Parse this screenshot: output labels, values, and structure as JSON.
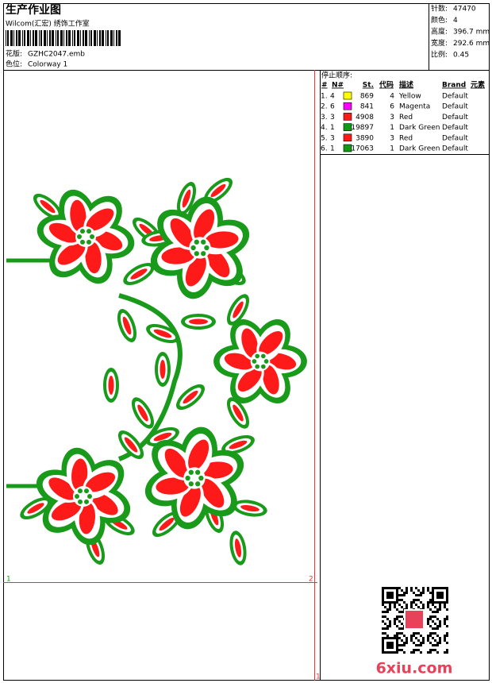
{
  "header": {
    "title": "生产作业图",
    "studio": "Wilcom(汇宏) 绣饰工作室",
    "design_label": "花版:",
    "design_file": "GZHC2047.emb",
    "colorway_label": "色位:",
    "colorway": "Colorway 1"
  },
  "info": [
    {
      "label": "针数:",
      "value": "47470"
    },
    {
      "label": "颜色:",
      "value": "4"
    },
    {
      "label": "高度:",
      "value": "396.7 mm"
    },
    {
      "label": "宽度:",
      "value": "292.6 mm"
    },
    {
      "label": "比例:",
      "value": "0.45"
    }
  ],
  "stop_sequence": {
    "title": "停止顺序:",
    "columns": [
      "#",
      "N#",
      "St.",
      "代码",
      "描述",
      "Brand",
      "元素"
    ],
    "rows": [
      {
        "index": "1.",
        "n": 4,
        "color": "#ffff00",
        "stitches": 869,
        "code": 4,
        "name": "Yellow",
        "brand": "Default"
      },
      {
        "index": "2.",
        "n": 6,
        "color": "#ff00ff",
        "stitches": 841,
        "code": 6,
        "name": "Magenta",
        "brand": "Default"
      },
      {
        "index": "3.",
        "n": 3,
        "color": "#ff1a1a",
        "stitches": 4908,
        "code": 3,
        "name": "Red",
        "brand": "Default"
      },
      {
        "index": "4.",
        "n": 1,
        "color": "#119911",
        "stitches": 19897,
        "code": 1,
        "name": "Dark Green",
        "brand": "Default"
      },
      {
        "index": "5.",
        "n": 3,
        "color": "#ff1a1a",
        "stitches": 3890,
        "code": 3,
        "name": "Red",
        "brand": "Default"
      },
      {
        "index": "6.",
        "n": 1,
        "color": "#119911",
        "stitches": 17063,
        "code": 1,
        "name": "Dark Green",
        "brand": "Default"
      }
    ]
  },
  "markers": {
    "left": "1",
    "right": "2",
    "bottom": "1"
  },
  "watermark": "6xiu.com"
}
